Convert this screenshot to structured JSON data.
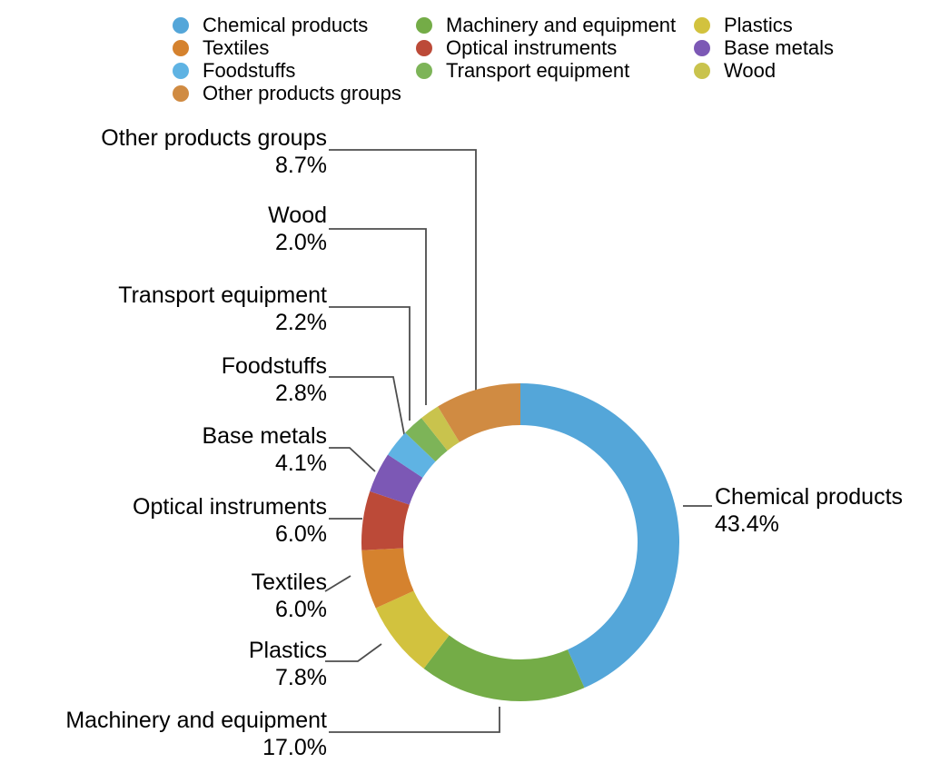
{
  "chart_data": {
    "type": "pie",
    "subtype": "donut",
    "title": "",
    "unit": "%",
    "total": 100.0,
    "start_angle_deg": 0,
    "direction": "clockwise",
    "legend_position": "top",
    "slices": [
      {
        "label": "Chemical products",
        "value": 43.4,
        "value_text": "43.4%",
        "color": "#54A6D9"
      },
      {
        "label": "Machinery and equipment",
        "value": 17.0,
        "value_text": "17.0%",
        "color": "#74AC47"
      },
      {
        "label": "Plastics",
        "value": 7.8,
        "value_text": "7.8%",
        "color": "#D2C23E"
      },
      {
        "label": "Textiles",
        "value": 6.0,
        "value_text": "6.0%",
        "color": "#D5822E"
      },
      {
        "label": "Optical instruments",
        "value": 6.0,
        "value_text": "6.0%",
        "color": "#BC4A38"
      },
      {
        "label": "Base metals",
        "value": 4.1,
        "value_text": "4.1%",
        "color": "#7C58B5"
      },
      {
        "label": "Foodstuffs",
        "value": 2.8,
        "value_text": "2.8%",
        "color": "#5FB3E3"
      },
      {
        "label": "Transport equipment",
        "value": 2.2,
        "value_text": "2.2%",
        "color": "#7DB458"
      },
      {
        "label": "Wood",
        "value": 2.0,
        "value_text": "2.0%",
        "color": "#C9C34D"
      },
      {
        "label": "Other products groups",
        "value": 8.7,
        "value_text": "8.7%",
        "color": "#D08B42"
      }
    ],
    "leader_line_color": "#4d4d4d"
  },
  "legend": {
    "columns": [
      {
        "items": [
          {
            "label": "Chemical products",
            "color": "#54A6D9"
          },
          {
            "label": "Textiles",
            "color": "#D5822E"
          },
          {
            "label": "Foodstuffs",
            "color": "#5FB3E3"
          },
          {
            "label": "Other products groups",
            "color": "#D08B42"
          }
        ]
      },
      {
        "items": [
          {
            "label": "Machinery and equipment",
            "color": "#74AC47"
          },
          {
            "label": "Optical instruments",
            "color": "#BC4A38"
          },
          {
            "label": "Transport equipment",
            "color": "#7DB458"
          }
        ]
      },
      {
        "items": [
          {
            "label": "Plastics",
            "color": "#D2C23E"
          },
          {
            "label": "Base metals",
            "color": "#7C58B5"
          },
          {
            "label": "Wood",
            "color": "#C9C34D"
          }
        ]
      }
    ]
  }
}
